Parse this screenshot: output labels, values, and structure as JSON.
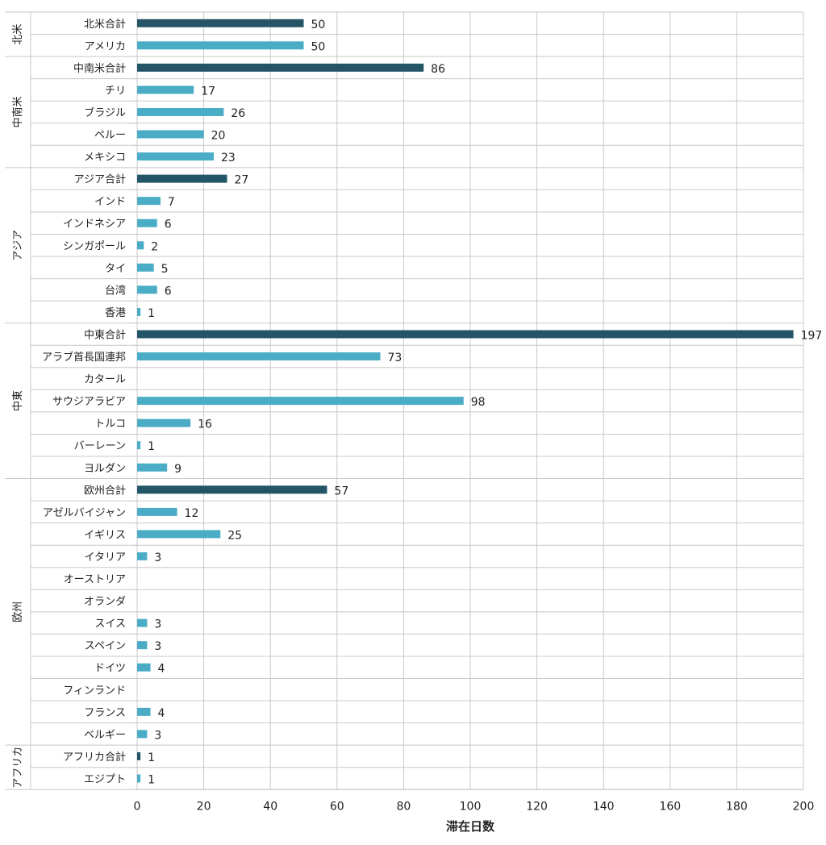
{
  "chart_data": {
    "type": "bar",
    "orientation": "horizontal",
    "title": "",
    "xlabel": "滞在日数",
    "ylabel": "",
    "xlim": [
      0,
      200
    ],
    "xticks": [
      0,
      20,
      40,
      60,
      80,
      100,
      120,
      140,
      160,
      180,
      200
    ],
    "grid": true,
    "legend": "none",
    "colors": {
      "total": "#235566",
      "country": "#4bacc6"
    },
    "groups": [
      {
        "name": "北米",
        "items": [
          {
            "label": "北米合計",
            "value": 50,
            "total": true
          },
          {
            "label": "アメリカ",
            "value": 50,
            "total": false
          }
        ]
      },
      {
        "name": "中南米",
        "items": [
          {
            "label": "中南米合計",
            "value": 86,
            "total": true
          },
          {
            "label": "チリ",
            "value": 17,
            "total": false
          },
          {
            "label": "ブラジル",
            "value": 26,
            "total": false
          },
          {
            "label": "ペルー",
            "value": 20,
            "total": false
          },
          {
            "label": "メキシコ",
            "value": 23,
            "total": false
          }
        ]
      },
      {
        "name": "アジア",
        "items": [
          {
            "label": "アジア合計",
            "value": 27,
            "total": true
          },
          {
            "label": "インド",
            "value": 7,
            "total": false
          },
          {
            "label": "インドネシア",
            "value": 6,
            "total": false
          },
          {
            "label": "シンガポール",
            "value": 2,
            "total": false
          },
          {
            "label": "タイ",
            "value": 5,
            "total": false
          },
          {
            "label": "台湾",
            "value": 6,
            "total": false
          },
          {
            "label": "香港",
            "value": 1,
            "total": false
          }
        ]
      },
      {
        "name": "中東",
        "items": [
          {
            "label": "中東合計",
            "value": 197,
            "total": true
          },
          {
            "label": "アラブ首長国連邦",
            "value": 73,
            "total": false
          },
          {
            "label": "カタール",
            "value": null,
            "total": false
          },
          {
            "label": "サウジアラビア",
            "value": 98,
            "total": false
          },
          {
            "label": "トルコ",
            "value": 16,
            "total": false
          },
          {
            "label": "バーレーン",
            "value": 1,
            "total": false
          },
          {
            "label": "ヨルダン",
            "value": 9,
            "total": false
          }
        ]
      },
      {
        "name": "欧州",
        "items": [
          {
            "label": "欧州合計",
            "value": 57,
            "total": true
          },
          {
            "label": "アゼルバイジャン",
            "value": 12,
            "total": false
          },
          {
            "label": "イギリス",
            "value": 25,
            "total": false
          },
          {
            "label": "イタリア",
            "value": 3,
            "total": false
          },
          {
            "label": "オーストリア",
            "value": null,
            "total": false
          },
          {
            "label": "オランダ",
            "value": null,
            "total": false
          },
          {
            "label": "スイス",
            "value": 3,
            "total": false
          },
          {
            "label": "スペイン",
            "value": 3,
            "total": false
          },
          {
            "label": "ドイツ",
            "value": 4,
            "total": false
          },
          {
            "label": "フィンランド",
            "value": null,
            "total": false
          },
          {
            "label": "フランス",
            "value": 4,
            "total": false
          },
          {
            "label": "ベルギー",
            "value": 3,
            "total": false
          }
        ]
      },
      {
        "name": "アフリカ",
        "items": [
          {
            "label": "アフリカ合計",
            "value": 1,
            "total": true
          },
          {
            "label": "エジプト",
            "value": 1,
            "total": false
          }
        ]
      }
    ]
  }
}
